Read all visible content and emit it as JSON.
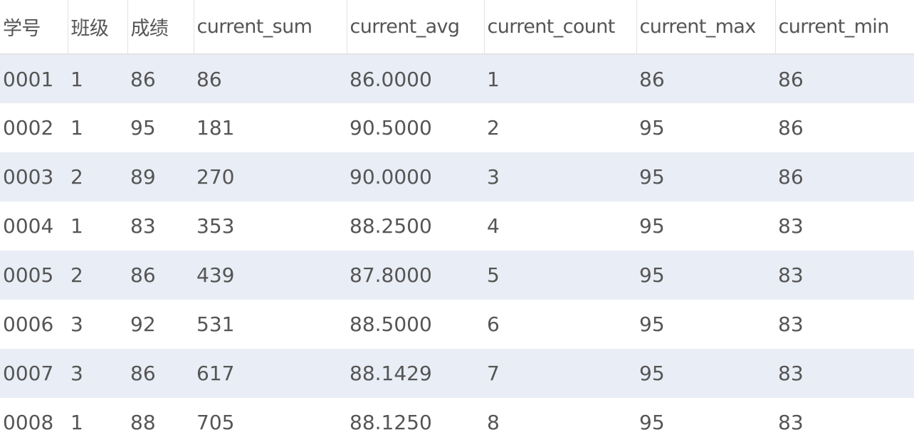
{
  "table": {
    "columns": [
      "学号",
      "班级",
      "成绩",
      "current_sum",
      "current_avg",
      "current_count",
      "current_max",
      "current_min"
    ],
    "rows": [
      [
        "0001",
        "1",
        "86",
        "86",
        "86.0000",
        "1",
        "86",
        "86"
      ],
      [
        "0002",
        "1",
        "95",
        "181",
        "90.5000",
        "2",
        "95",
        "86"
      ],
      [
        "0003",
        "2",
        "89",
        "270",
        "90.0000",
        "3",
        "95",
        "86"
      ],
      [
        "0004",
        "1",
        "83",
        "353",
        "88.2500",
        "4",
        "95",
        "83"
      ],
      [
        "0005",
        "2",
        "86",
        "439",
        "87.8000",
        "5",
        "95",
        "83"
      ],
      [
        "0006",
        "3",
        "92",
        "531",
        "88.5000",
        "6",
        "95",
        "83"
      ],
      [
        "0007",
        "3",
        "86",
        "617",
        "88.1429",
        "7",
        "95",
        "83"
      ],
      [
        "0008",
        "1",
        "88",
        "705",
        "88.1250",
        "8",
        "95",
        "83"
      ]
    ]
  },
  "colors": {
    "stripe": "#e9edf5",
    "text": "#555555",
    "header_border": "#e4e4e4"
  }
}
